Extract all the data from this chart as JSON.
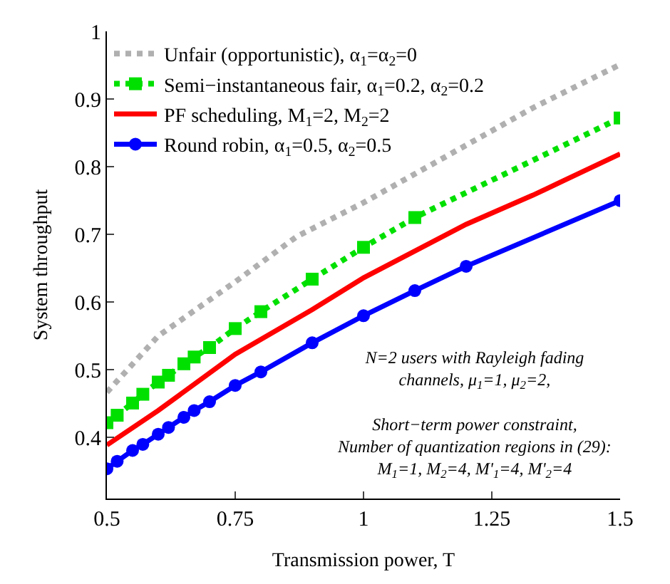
{
  "chart_data": {
    "type": "line",
    "xlabel": "Transmission power, T",
    "ylabel": "System throughput",
    "xlim": [
      0.5,
      1.5
    ],
    "ylim": [
      0.31,
      1
    ],
    "xticks": [
      0.5,
      0.75,
      1,
      1.25,
      1.5
    ],
    "yticks": [
      0.4,
      0.5,
      0.6,
      0.7,
      0.8,
      0.9,
      1
    ],
    "legend": "top left",
    "series": [
      {
        "name": "Unfair (opportunistic), α$_{1}$=α$_{2}$=0",
        "color": "#b0b0b0",
        "line_style": "dotted",
        "marker": "none",
        "x": [
          0.5,
          0.6,
          0.75,
          0.87,
          1.0,
          1.33,
          1.5
        ],
        "values": [
          0.467,
          0.55,
          0.63,
          0.697,
          0.747,
          0.887,
          0.951
        ]
      },
      {
        "name": "Semi−instantaneous fair, α$_{1}$=0.2, α$_{2}$=0.2",
        "color": "#00e000",
        "line_style": "dotted",
        "marker": "square",
        "x": [
          0.5,
          0.52,
          0.55,
          0.57,
          0.6,
          0.62,
          0.65,
          0.67,
          0.7,
          0.75,
          0.8,
          0.9,
          1.0,
          1.1,
          1.5
        ],
        "values": [
          0.422,
          0.433,
          0.451,
          0.464,
          0.482,
          0.492,
          0.509,
          0.519,
          0.533,
          0.561,
          0.586,
          0.634,
          0.681,
          0.725,
          0.872
        ]
      },
      {
        "name": "PF scheduling, M$_{1}$=2, M$_{2}$=2",
        "color": "#ff0000",
        "line_style": "solid",
        "marker": "none",
        "x": [
          0.5,
          0.6,
          0.75,
          0.9,
          1.0,
          1.2,
          1.33,
          1.5
        ],
        "values": [
          0.389,
          0.44,
          0.523,
          0.589,
          0.636,
          0.715,
          0.758,
          0.819
        ]
      },
      {
        "name": "Round robin, α$_{1}$=0.5, α$_{2}$=0.5",
        "color": "#0000ff",
        "line_style": "solid",
        "marker": "circle",
        "x": [
          0.5,
          0.52,
          0.55,
          0.57,
          0.6,
          0.62,
          0.65,
          0.67,
          0.7,
          0.75,
          0.8,
          0.9,
          1.0,
          1.1,
          1.2,
          1.5
        ],
        "values": [
          0.354,
          0.365,
          0.381,
          0.39,
          0.405,
          0.415,
          0.43,
          0.44,
          0.453,
          0.477,
          0.497,
          0.54,
          0.58,
          0.617,
          0.653,
          0.75
        ]
      }
    ],
    "annotations": [
      "N=2 users with Rayleigh fading\nchannels, μ$_{1}$=1, μ$_{2}$=2,\n\nShort−term power constraint,\nNumber of quantization regions in (29):\nM$_{1}$=1, M$_{2}$=4, M'$_{1}$=4, M'$_{2}$=4"
    ]
  }
}
